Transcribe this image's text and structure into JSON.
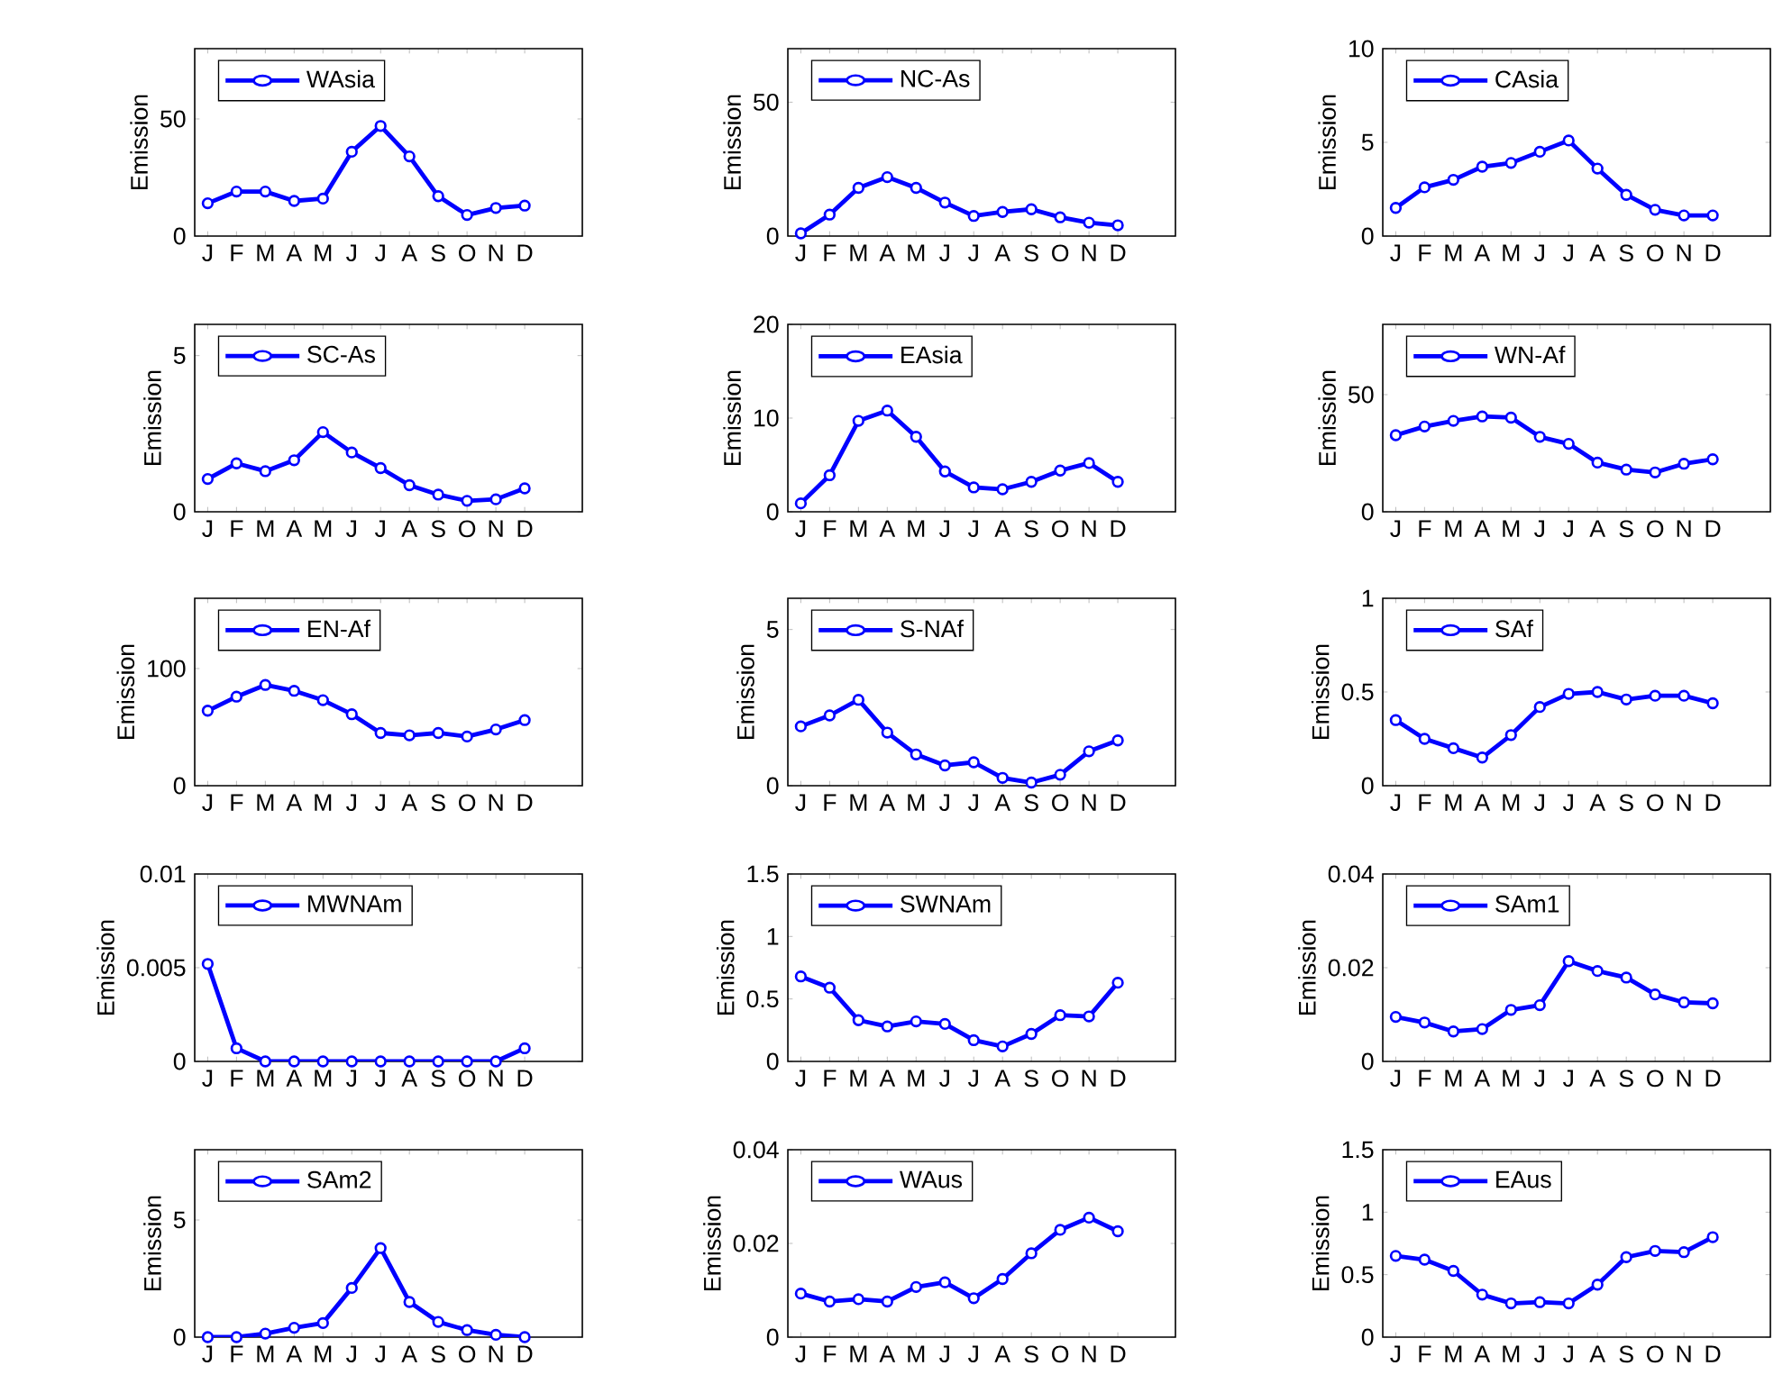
{
  "chart_data": [
    {
      "type": "line",
      "ylabel": "Emission",
      "categories": [
        "J",
        "F",
        "M",
        "A",
        "M",
        "J",
        "J",
        "A",
        "S",
        "O",
        "N",
        "D"
      ],
      "ylim": [
        0,
        80
      ],
      "yticks": [
        0,
        50
      ],
      "legend": "top left",
      "marker": "circle",
      "line_style": "solid",
      "series": [
        {
          "name": "WAsia",
          "color": "#0000ff",
          "values": [
            14,
            19,
            19,
            15,
            16,
            36,
            47,
            34,
            17,
            9,
            12,
            13
          ]
        }
      ]
    },
    {
      "type": "line",
      "ylabel": "Emission",
      "categories": [
        "J",
        "F",
        "M",
        "A",
        "M",
        "J",
        "J",
        "A",
        "S",
        "O",
        "N",
        "D"
      ],
      "ylim": [
        0,
        70
      ],
      "yticks": [
        0,
        50
      ],
      "legend": "top left",
      "marker": "circle",
      "line_style": "solid",
      "series": [
        {
          "name": "NC-As",
          "color": "#0000ff",
          "values": [
            1,
            8,
            18,
            22,
            18,
            12.5,
            7.5,
            9,
            10,
            7,
            5,
            4
          ]
        }
      ]
    },
    {
      "type": "line",
      "ylabel": "Emission",
      "categories": [
        "J",
        "F",
        "M",
        "A",
        "M",
        "J",
        "J",
        "A",
        "S",
        "O",
        "N",
        "D"
      ],
      "ylim": [
        0,
        10
      ],
      "yticks": [
        0,
        5,
        10
      ],
      "legend": "top left",
      "marker": "circle",
      "line_style": "solid",
      "series": [
        {
          "name": "CAsia",
          "color": "#0000ff",
          "values": [
            1.5,
            2.6,
            3.0,
            3.7,
            3.9,
            4.5,
            5.1,
            3.6,
            2.2,
            1.4,
            1.1,
            1.1
          ]
        }
      ]
    },
    {
      "type": "line",
      "ylabel": "Emission",
      "categories": [
        "J",
        "F",
        "M",
        "A",
        "M",
        "J",
        "J",
        "A",
        "S",
        "O",
        "N",
        "D"
      ],
      "ylim": [
        0,
        6
      ],
      "yticks": [
        0,
        5
      ],
      "legend": "top left",
      "marker": "circle",
      "line_style": "solid",
      "series": [
        {
          "name": "SC-As",
          "color": "#0000ff",
          "values": [
            1.05,
            1.55,
            1.3,
            1.65,
            2.55,
            1.9,
            1.4,
            0.85,
            0.55,
            0.35,
            0.4,
            0.75
          ]
        }
      ]
    },
    {
      "type": "line",
      "ylabel": "Emission",
      "categories": [
        "J",
        "F",
        "M",
        "A",
        "M",
        "J",
        "J",
        "A",
        "S",
        "O",
        "N",
        "D"
      ],
      "ylim": [
        0,
        20
      ],
      "yticks": [
        0,
        10,
        20
      ],
      "legend": "top left",
      "marker": "circle",
      "line_style": "solid",
      "series": [
        {
          "name": "EAsia",
          "color": "#0000ff",
          "values": [
            0.9,
            3.9,
            9.7,
            10.8,
            8.0,
            4.3,
            2.6,
            2.4,
            3.2,
            4.4,
            5.2,
            3.2
          ]
        }
      ]
    },
    {
      "type": "line",
      "ylabel": "Emission",
      "categories": [
        "J",
        "F",
        "M",
        "A",
        "M",
        "J",
        "J",
        "A",
        "S",
        "O",
        "N",
        "D"
      ],
      "ylim": [
        0,
        80
      ],
      "yticks": [
        0,
        50
      ],
      "legend": "top left",
      "marker": "circle",
      "line_style": "solid",
      "series": [
        {
          "name": "WN-Af",
          "color": "#0000ff",
          "values": [
            32.7,
            36.4,
            38.8,
            40.7,
            40.2,
            32,
            29,
            21,
            18,
            16.8,
            20.5,
            22.4
          ]
        }
      ]
    },
    {
      "type": "line",
      "ylabel": "Emission",
      "categories": [
        "J",
        "F",
        "M",
        "A",
        "M",
        "J",
        "J",
        "A",
        "S",
        "O",
        "N",
        "D"
      ],
      "ylim": [
        0,
        160
      ],
      "yticks": [
        0,
        100
      ],
      "legend": "top left",
      "marker": "circle",
      "line_style": "solid",
      "series": [
        {
          "name": "EN-Af",
          "color": "#0000ff",
          "values": [
            64,
            76,
            86,
            81,
            73,
            61,
            45,
            43,
            45,
            42,
            48,
            56
          ]
        }
      ]
    },
    {
      "type": "line",
      "ylabel": "Emission",
      "categories": [
        "J",
        "F",
        "M",
        "A",
        "M",
        "J",
        "J",
        "A",
        "S",
        "O",
        "N",
        "D"
      ],
      "ylim": [
        0,
        6
      ],
      "yticks": [
        0,
        5
      ],
      "legend": "top left",
      "marker": "circle",
      "line_style": "solid",
      "series": [
        {
          "name": "S-NAf",
          "color": "#0000ff",
          "values": [
            1.9,
            2.25,
            2.75,
            1.7,
            1.0,
            0.65,
            0.75,
            0.25,
            0.1,
            0.35,
            1.1,
            1.45
          ]
        }
      ]
    },
    {
      "type": "line",
      "ylabel": "Emission",
      "categories": [
        "J",
        "F",
        "M",
        "A",
        "M",
        "J",
        "J",
        "A",
        "S",
        "O",
        "N",
        "D"
      ],
      "ylim": [
        0,
        1
      ],
      "yticks": [
        0,
        0.5,
        1
      ],
      "legend": "top left",
      "marker": "circle",
      "line_style": "solid",
      "series": [
        {
          "name": "SAf",
          "color": "#0000ff",
          "values": [
            0.35,
            0.25,
            0.2,
            0.15,
            0.27,
            0.42,
            0.49,
            0.5,
            0.46,
            0.48,
            0.48,
            0.44
          ]
        }
      ]
    },
    {
      "type": "line",
      "ylabel": "Emission",
      "categories": [
        "J",
        "F",
        "M",
        "A",
        "M",
        "J",
        "J",
        "A",
        "S",
        "O",
        "N",
        "D"
      ],
      "ylim": [
        0,
        0.01
      ],
      "yticks": [
        0,
        0.005,
        0.01
      ],
      "legend": "top left",
      "marker": "circle",
      "line_style": "solid",
      "series": [
        {
          "name": "MWNAm",
          "color": "#0000ff",
          "values": [
            0.0052,
            0.0007,
            0,
            0,
            0,
            0,
            0,
            0,
            0,
            0,
            0,
            0.0007
          ]
        }
      ]
    },
    {
      "type": "line",
      "ylabel": "Emission",
      "categories": [
        "J",
        "F",
        "M",
        "A",
        "M",
        "J",
        "J",
        "A",
        "S",
        "O",
        "N",
        "D"
      ],
      "ylim": [
        0,
        1.5
      ],
      "yticks": [
        0,
        0.5,
        1,
        1.5
      ],
      "legend": "top left",
      "marker": "circle",
      "line_style": "solid",
      "series": [
        {
          "name": "SWNAm",
          "color": "#0000ff",
          "values": [
            0.68,
            0.59,
            0.33,
            0.28,
            0.32,
            0.3,
            0.17,
            0.12,
            0.22,
            0.37,
            0.36,
            0.63
          ]
        }
      ]
    },
    {
      "type": "line",
      "ylabel": "Emission",
      "categories": [
        "J",
        "F",
        "M",
        "A",
        "M",
        "J",
        "J",
        "A",
        "S",
        "O",
        "N",
        "D"
      ],
      "ylim": [
        0,
        0.04
      ],
      "yticks": [
        0,
        0.02,
        0.04
      ],
      "legend": "top left",
      "marker": "circle",
      "line_style": "solid",
      "series": [
        {
          "name": "SAm1",
          "color": "#0000ff",
          "values": [
            0.0095,
            0.0083,
            0.0064,
            0.0069,
            0.011,
            0.012,
            0.0214,
            0.0193,
            0.0179,
            0.0143,
            0.0126,
            0.0124
          ]
        }
      ]
    },
    {
      "type": "line",
      "ylabel": "Emission",
      "categories": [
        "J",
        "F",
        "M",
        "A",
        "M",
        "J",
        "J",
        "A",
        "S",
        "O",
        "N",
        "D"
      ],
      "ylim": [
        0,
        8
      ],
      "yticks": [
        0,
        5
      ],
      "legend": "top left",
      "marker": "circle",
      "line_style": "solid",
      "series": [
        {
          "name": "SAm2",
          "color": "#0000ff",
          "values": [
            0,
            0,
            0.15,
            0.4,
            0.6,
            2.1,
            3.8,
            1.5,
            0.65,
            0.3,
            0.1,
            0
          ]
        }
      ]
    },
    {
      "type": "line",
      "ylabel": "Emission",
      "categories": [
        "J",
        "F",
        "M",
        "A",
        "M",
        "J",
        "J",
        "A",
        "S",
        "O",
        "N",
        "D"
      ],
      "ylim": [
        0,
        0.04
      ],
      "yticks": [
        0,
        0.02,
        0.04
      ],
      "legend": "top left",
      "marker": "circle",
      "line_style": "solid",
      "series": [
        {
          "name": "WAus",
          "color": "#0000ff",
          "values": [
            0.0093,
            0.0076,
            0.0081,
            0.0076,
            0.0107,
            0.0117,
            0.0083,
            0.0124,
            0.0179,
            0.0229,
            0.0255,
            0.0226
          ]
        }
      ]
    },
    {
      "type": "line",
      "ylabel": "Emission",
      "categories": [
        "J",
        "F",
        "M",
        "A",
        "M",
        "J",
        "J",
        "A",
        "S",
        "O",
        "N",
        "D"
      ],
      "ylim": [
        0,
        1.5
      ],
      "yticks": [
        0,
        0.5,
        1,
        1.5
      ],
      "legend": "top left",
      "marker": "circle",
      "line_style": "solid",
      "series": [
        {
          "name": "EAus",
          "color": "#0000ff",
          "values": [
            0.65,
            0.62,
            0.53,
            0.34,
            0.27,
            0.28,
            0.27,
            0.42,
            0.64,
            0.69,
            0.68,
            0.8
          ]
        }
      ]
    }
  ]
}
